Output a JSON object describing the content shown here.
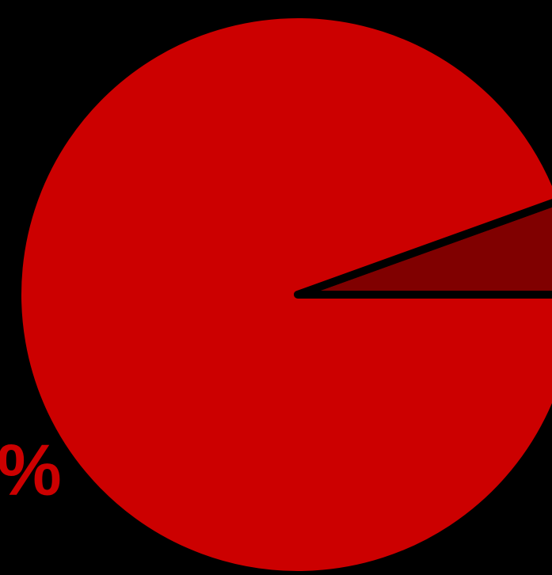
{
  "chart_data": {
    "type": "pie",
    "start_angle_deg": 0,
    "direction": "counterclockwise",
    "background": "#000000",
    "separator_color": "#000000",
    "slices": [
      {
        "value": 5.5,
        "color": "#800000"
      },
      {
        "value": 94.5,
        "color": "#CC0000"
      }
    ],
    "labels": [
      {
        "text": "%",
        "color": "#CC0000"
      }
    ]
  }
}
